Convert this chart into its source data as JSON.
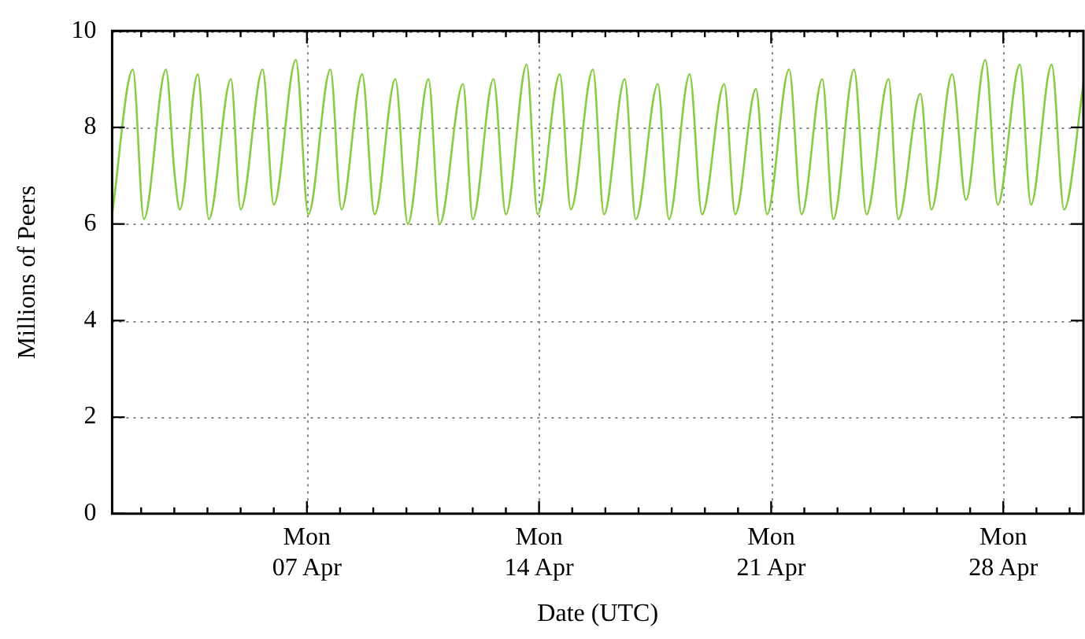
{
  "chart_data": {
    "type": "line",
    "xlabel": "Date (UTC)",
    "ylabel": "Millions of Peers",
    "x": [
      "--04-01T03:00",
      "--04-01T18:00",
      "--04-02T02:00",
      "--04-02T18:00",
      "--04-03T00:00",
      "--04-03T04:00",
      "--04-03T17:00",
      "--04-04T01:00",
      "--04-04T17:00",
      "--04-05T00:00",
      "--04-05T16:00",
      "--04-06T00:00",
      "--04-06T16:00",
      "--04-07T01:00",
      "--04-07T17:00",
      "--04-08T01:00",
      "--04-08T16:00",
      "--04-09T01:00",
      "--04-09T16:00",
      "--04-10T01:00",
      "--04-10T16:00",
      "--04-11T00:00",
      "--04-11T17:00",
      "--04-12T00:00",
      "--04-12T15:00",
      "--04-13T00:00",
      "--04-13T15:00",
      "--04-13T23:00",
      "--04-14T15:00",
      "--04-14T23:00",
      "--04-15T15:00",
      "--04-15T23:00",
      "--04-16T14:00",
      "--04-16T22:00",
      "--04-17T14:00",
      "--04-17T22:00",
      "--04-18T13:00",
      "--04-18T22:00",
      "--04-19T14:00",
      "--04-19T22:00",
      "--04-20T13:00",
      "--04-20T21:00",
      "--04-21T13:00",
      "--04-21T22:00",
      "--04-22T13:00",
      "--04-22T21:00",
      "--04-23T12:00",
      "--04-23T21:00",
      "--04-24T13:00",
      "--04-24T20:00",
      "--04-25T12:00",
      "--04-25T20:00",
      "--04-26T11:00",
      "--04-26T21:00",
      "--04-27T11:00",
      "--04-27T20:00",
      "--04-28T12:00",
      "--04-28T20:00",
      "--04-29T11:00",
      "--04-29T20:00",
      "--04-30T10:00"
    ],
    "series": [
      {
        "color": "#88cc44",
        "values": [
          6.2,
          9.2,
          6.1,
          9.2,
          7.1,
          6.3,
          9.1,
          6.1,
          9.0,
          6.3,
          9.2,
          6.4,
          9.4,
          6.2,
          9.2,
          6.3,
          9.1,
          6.2,
          9.0,
          6.0,
          9.0,
          6.0,
          8.9,
          6.1,
          9.0,
          6.2,
          9.3,
          6.2,
          9.1,
          6.3,
          9.2,
          6.2,
          9.0,
          6.1,
          8.9,
          6.1,
          9.1,
          6.2,
          8.9,
          6.2,
          8.8,
          6.2,
          9.2,
          6.2,
          9.0,
          6.1,
          9.2,
          6.2,
          9.0,
          6.1,
          8.7,
          6.3,
          9.1,
          6.5,
          9.4,
          6.4,
          9.3,
          6.4,
          9.3,
          6.3,
          8.9
        ]
      }
    ],
    "xlim": [
      "--04-01T03:00",
      "--04-30T10:00"
    ],
    "xticks": [
      {
        "value": "--04-02",
        "label": null
      },
      {
        "value": "--04-03",
        "label": null
      },
      {
        "value": "--04-04",
        "label": null
      },
      {
        "value": "--04-05",
        "label": null
      },
      {
        "value": "--04-06",
        "label": null
      },
      {
        "value": "--04-07",
        "label": "Mon\n07 Apr"
      },
      {
        "value": "--04-08",
        "label": null
      },
      {
        "value": "--04-09",
        "label": null
      },
      {
        "value": "--04-10",
        "label": null
      },
      {
        "value": "--04-11",
        "label": null
      },
      {
        "value": "--04-12",
        "label": null
      },
      {
        "value": "--04-13",
        "label": null
      },
      {
        "value": "--04-14",
        "label": "Mon\n14 Apr"
      },
      {
        "value": "--04-15",
        "label": null
      },
      {
        "value": "--04-16",
        "label": null
      },
      {
        "value": "--04-17",
        "label": null
      },
      {
        "value": "--04-18",
        "label": null
      },
      {
        "value": "--04-19",
        "label": null
      },
      {
        "value": "--04-20",
        "label": null
      },
      {
        "value": "--04-21",
        "label": "Mon\n21 Apr"
      },
      {
        "value": "--04-22",
        "label": null
      },
      {
        "value": "--04-23",
        "label": null
      },
      {
        "value": "--04-24",
        "label": null
      },
      {
        "value": "--04-25",
        "label": null
      },
      {
        "value": "--04-26",
        "label": null
      },
      {
        "value": "--04-27",
        "label": null
      },
      {
        "value": "--04-28",
        "label": "Mon\n28 Apr"
      },
      {
        "value": "--04-29",
        "label": null
      },
      {
        "value": "--04-30",
        "label": null
      }
    ],
    "ylim": [
      0,
      10
    ],
    "yticks": [
      0,
      2,
      4,
      6,
      8,
      10
    ],
    "grid": true,
    "legend": false,
    "marker": "none",
    "line_style": "solid"
  }
}
